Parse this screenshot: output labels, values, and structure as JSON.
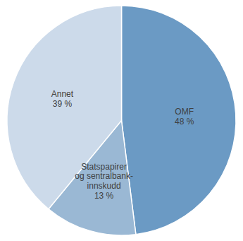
{
  "chart_data": {
    "type": "pie",
    "categories": [
      "OMF",
      "Statspapirer\nog sentralbank-\ninnskudd",
      "Annet"
    ],
    "values": [
      48,
      13,
      39
    ],
    "value_labels": [
      "48 %",
      "13 %",
      "39 %"
    ],
    "colors": [
      "#6b9ac4",
      "#9ab8d4",
      "#ccdaea"
    ],
    "data_labels": true
  }
}
